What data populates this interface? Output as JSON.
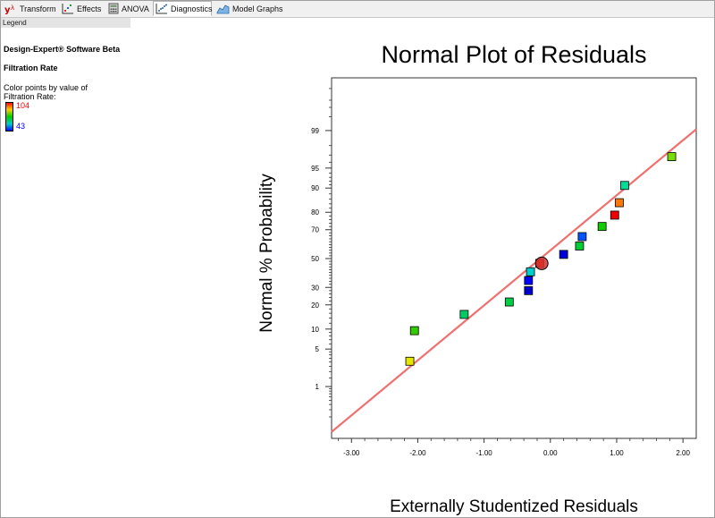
{
  "tabs": [
    {
      "label": "Transform",
      "icon": "lambda-icon"
    },
    {
      "label": "Effects",
      "icon": "scatter-chart-icon"
    },
    {
      "label": "ANOVA",
      "icon": "calculator-icon"
    },
    {
      "label": "Diagnostics",
      "icon": "dot-scatter-icon",
      "active": true
    },
    {
      "label": "Model Graphs",
      "icon": "surface-graph-icon"
    }
  ],
  "legend": {
    "header": "Legend",
    "software": "Design-Expert® Software Beta",
    "response": "Filtration Rate",
    "color_note_line1": "Color points by value of",
    "color_note_line2": "Filtration Rate:",
    "max_value": "104",
    "min_value": "43",
    "max_color": "#ff0000",
    "min_color": "#0000ff"
  },
  "chart_data": {
    "type": "scatter",
    "title": "Normal Plot of Residuals",
    "xlabel": "Externally Studentized Residuals",
    "ylabel": "Normal % Probability",
    "xlim": [
      -3.3,
      2.2
    ],
    "x_ticks": [
      -3.0,
      -2.0,
      -1.0,
      0.0,
      1.0,
      2.0
    ],
    "x_tick_labels": [
      "-3.00",
      "-2.00",
      "-1.00",
      "0.00",
      "1.00",
      "2.00"
    ],
    "y_scale": "normal probability",
    "y_ticks": [
      1,
      5,
      10,
      20,
      30,
      50,
      70,
      80,
      90,
      95,
      99
    ],
    "y_tick_labels": [
      "1",
      "5",
      "10",
      "20",
      "30",
      "50",
      "70",
      "80",
      "90",
      "95",
      "99"
    ],
    "grid": false,
    "reference_line": {
      "color": "#f07070",
      "x_at_50": -0.15,
      "slope_z_per_unit": 1.0
    },
    "points": [
      {
        "x": -2.12,
        "y": 3.1,
        "color": "#e6e600"
      },
      {
        "x": -2.05,
        "y": 9.5,
        "color": "#33cc00"
      },
      {
        "x": -1.3,
        "y": 15.5,
        "color": "#00cc66"
      },
      {
        "x": -0.62,
        "y": 21.5,
        "color": "#00cc44"
      },
      {
        "x": -0.33,
        "y": 28.0,
        "color": "#0000cc"
      },
      {
        "x": -0.33,
        "y": 34.5,
        "color": "#0000ff"
      },
      {
        "x": -0.3,
        "y": 40.5,
        "color": "#00cccc"
      },
      {
        "x": -0.16,
        "y": 46.5,
        "color": "#ff3300"
      },
      {
        "x": -0.13,
        "y": 46.5,
        "color": "#d03030",
        "highlighted": true
      },
      {
        "x": 0.2,
        "y": 53.0,
        "color": "#0000dd"
      },
      {
        "x": 0.44,
        "y": 59.0,
        "color": "#00cc33"
      },
      {
        "x": 0.48,
        "y": 65.5,
        "color": "#0055ff"
      },
      {
        "x": 0.78,
        "y": 72.0,
        "color": "#11cc00"
      },
      {
        "x": 0.97,
        "y": 78.5,
        "color": "#ee0000"
      },
      {
        "x": 1.04,
        "y": 84.5,
        "color": "#ff7700"
      },
      {
        "x": 1.12,
        "y": 90.8,
        "color": "#00dd99"
      },
      {
        "x": 1.83,
        "y": 96.8,
        "color": "#77dd00"
      }
    ]
  }
}
